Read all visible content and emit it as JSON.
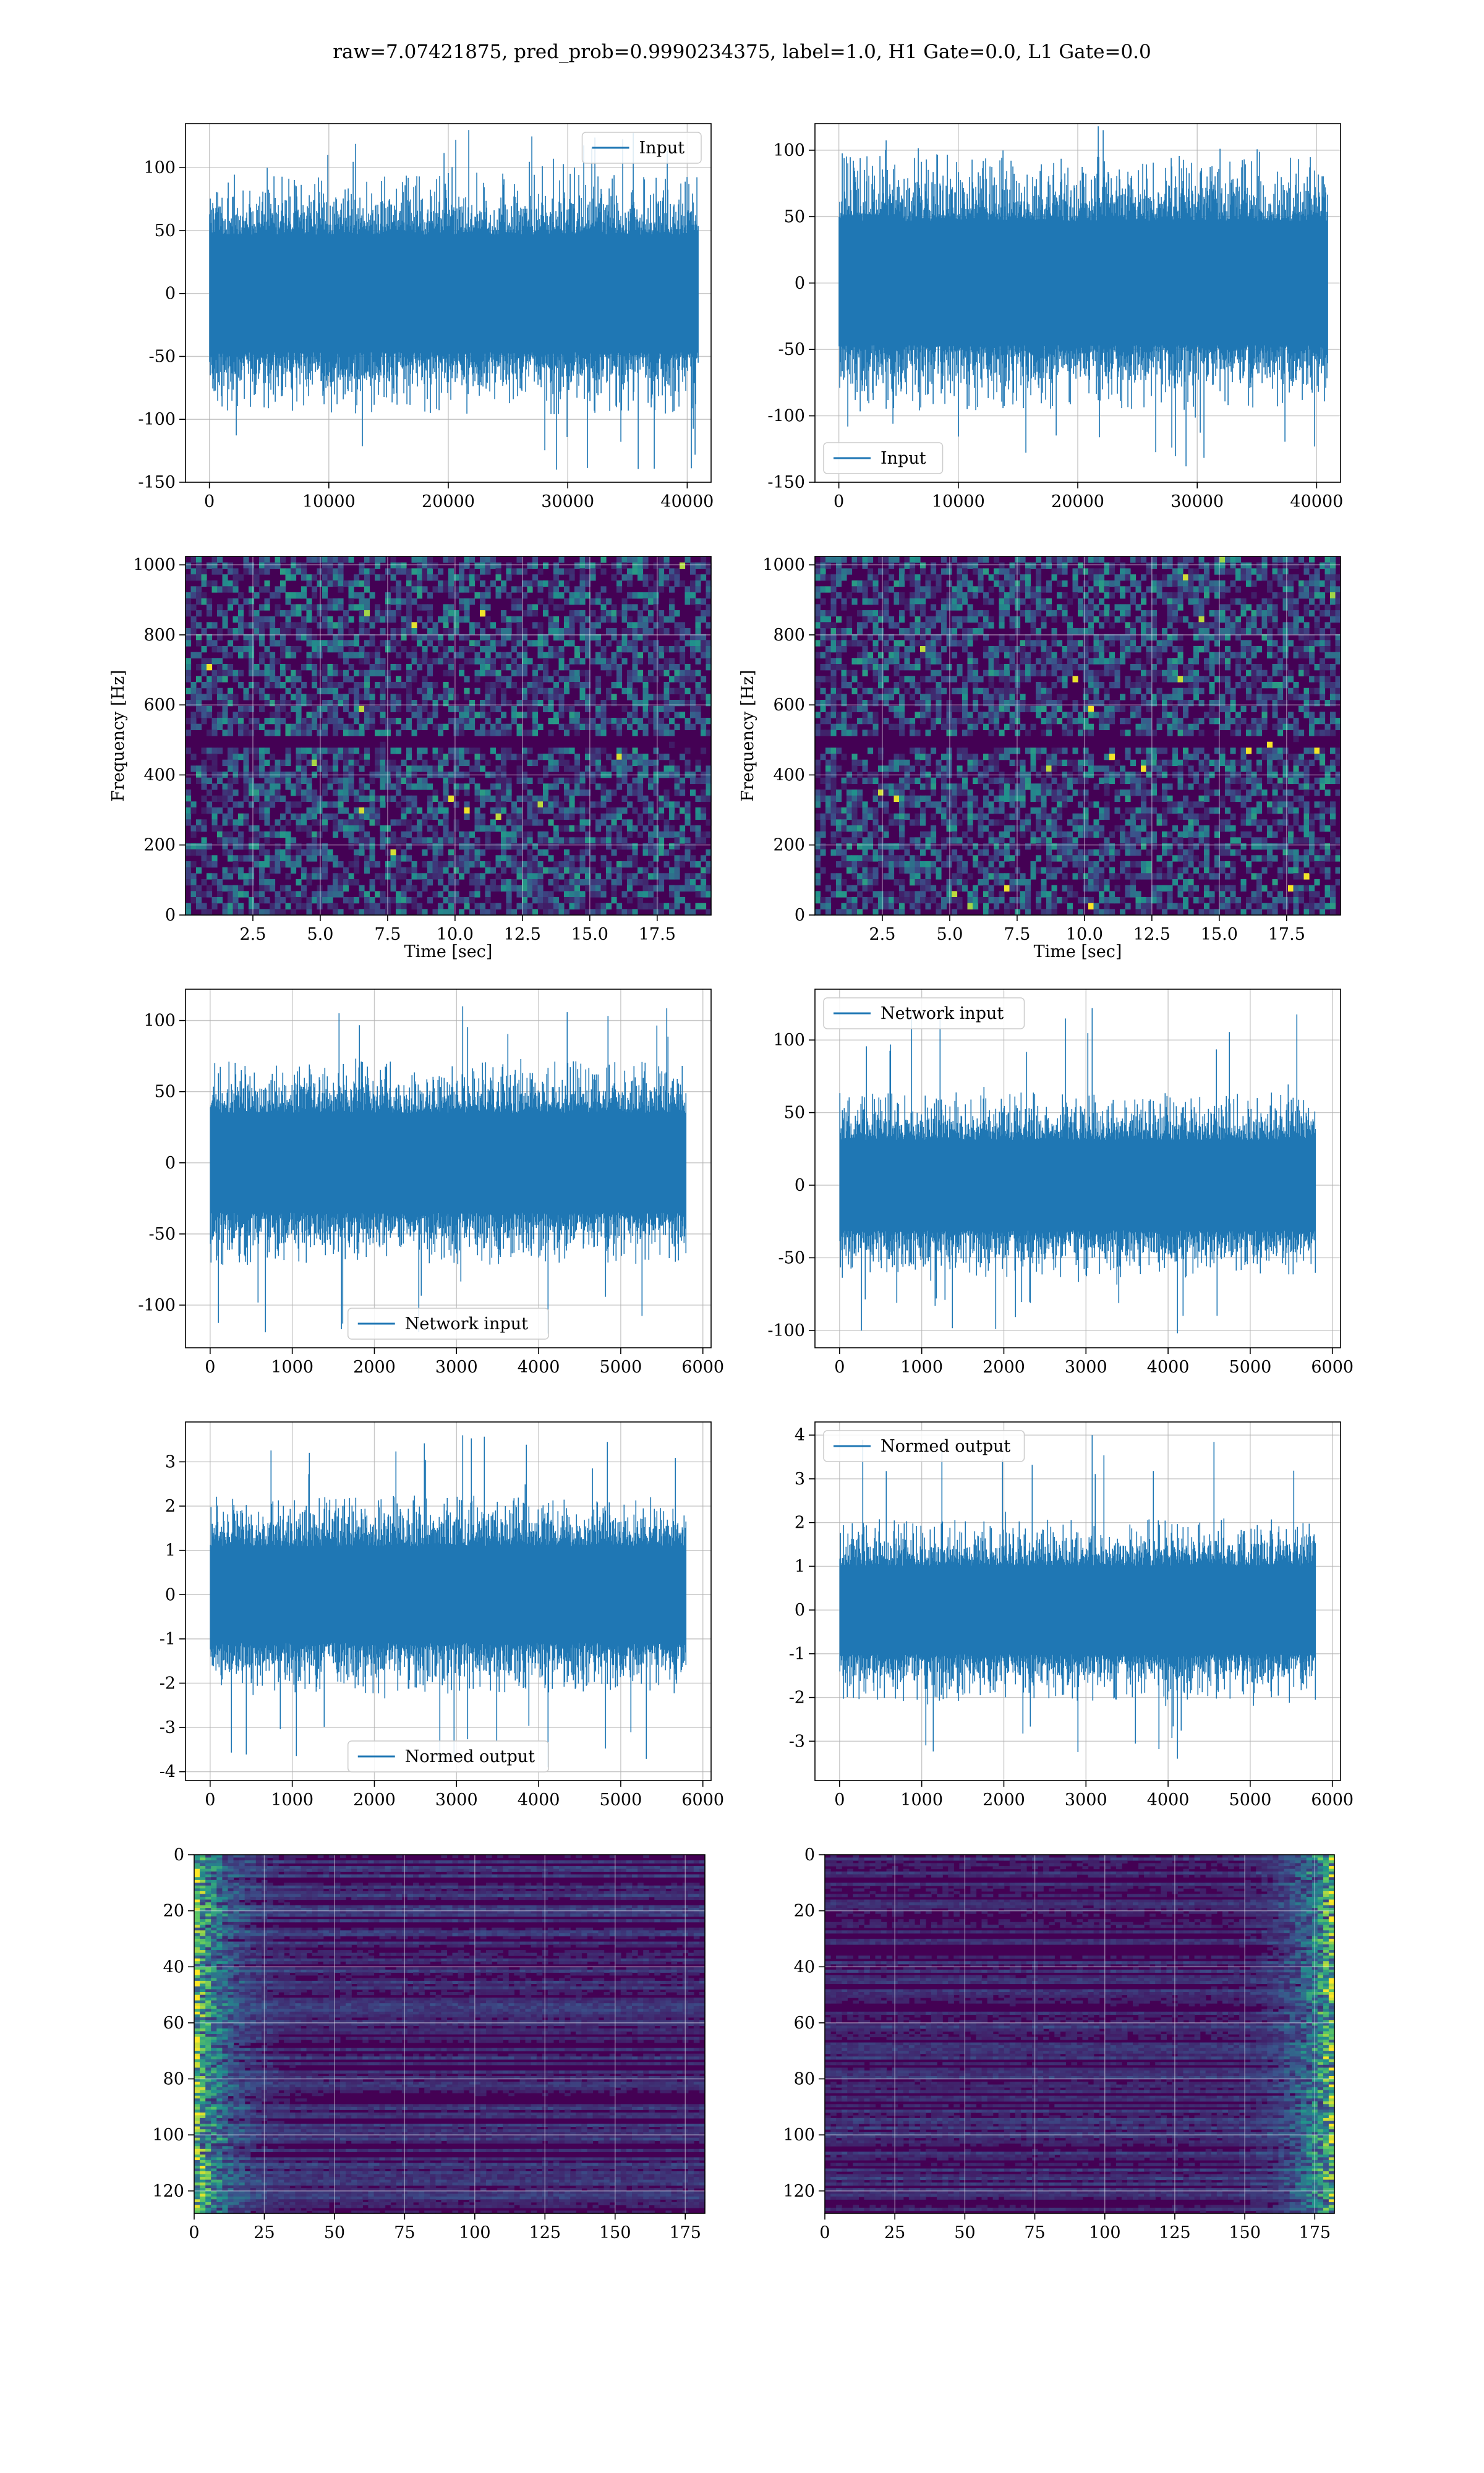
{
  "suptitle": "raw=7.07421875, pred_prob=0.9990234375, label=1.0, H1 Gate=0.0, L1 Gate=0.0",
  "colors": {
    "series": "#1f77b4",
    "grid": "#b0b0b0",
    "heat_low": "#440154",
    "heat_high": "#fde725"
  },
  "chart_data": [
    {
      "id": "h1-input",
      "type": "line",
      "series": [
        {
          "name": "Input"
        }
      ],
      "legend": "top-right",
      "xlim": [
        -2000,
        42000
      ],
      "ylim": [
        -150,
        135
      ],
      "xticks": [
        0,
        10000,
        20000,
        30000,
        40000
      ],
      "yticks": [
        -150,
        -100,
        -50,
        0,
        50,
        100
      ],
      "signal": {
        "n_points": 40960,
        "core_abs": 60,
        "peak_max": 130,
        "peak_min": -140
      },
      "grid": true
    },
    {
      "id": "l1-input",
      "type": "line",
      "series": [
        {
          "name": "Input"
        }
      ],
      "legend": "bottom-left",
      "xlim": [
        -2000,
        42000
      ],
      "ylim": [
        -150,
        120
      ],
      "xticks": [
        0,
        10000,
        20000,
        30000,
        40000
      ],
      "yticks": [
        -150,
        -100,
        -50,
        0,
        50,
        100
      ],
      "signal": {
        "n_points": 40960,
        "core_abs": 60,
        "peak_max": 118,
        "peak_min": -138
      },
      "grid": true
    },
    {
      "id": "h1-spectrogram",
      "type": "heatmap",
      "xlabel": "Time [sec]",
      "ylabel": "Frequency [Hz]",
      "xlim": [
        0,
        19.5
      ],
      "ylim": [
        0,
        1024
      ],
      "xticks": [
        2.5,
        5.0,
        7.5,
        10.0,
        12.5,
        15.0,
        17.5
      ],
      "xtick_labels": [
        "2.5",
        "5.0",
        "7.5",
        "10.0",
        "12.5",
        "15.0",
        "17.5"
      ],
      "yticks": [
        0,
        200,
        400,
        600,
        800,
        1000
      ],
      "dark_band_hz": [
        480,
        520
      ],
      "grid": true
    },
    {
      "id": "l1-spectrogram",
      "type": "heatmap",
      "xlabel": "Time [sec]",
      "ylabel": "Frequency [Hz]",
      "xlim": [
        0,
        19.5
      ],
      "ylim": [
        0,
        1024
      ],
      "xticks": [
        2.5,
        5.0,
        7.5,
        10.0,
        12.5,
        15.0,
        17.5
      ],
      "xtick_labels": [
        "2.5",
        "5.0",
        "7.5",
        "10.0",
        "12.5",
        "15.0",
        "17.5"
      ],
      "yticks": [
        0,
        200,
        400,
        600,
        800,
        1000
      ],
      "dark_band_hz": [
        480,
        520
      ],
      "grid": true
    },
    {
      "id": "h1-network-input",
      "type": "line",
      "series": [
        {
          "name": "Network input"
        }
      ],
      "legend": "bottom-center",
      "xlim": [
        -300,
        6100
      ],
      "ylim": [
        -130,
        122
      ],
      "xticks": [
        0,
        1000,
        2000,
        3000,
        4000,
        5000,
        6000
      ],
      "yticks": [
        -100,
        -50,
        0,
        50,
        100
      ],
      "signal": {
        "n_points": 5800,
        "core_abs": 45,
        "peak_max": 110,
        "peak_min": -120
      },
      "grid": true
    },
    {
      "id": "l1-network-input",
      "type": "line",
      "series": [
        {
          "name": "Network input"
        }
      ],
      "legend": "top-left",
      "xlim": [
        -300,
        6100
      ],
      "ylim": [
        -112,
        135
      ],
      "xticks": [
        0,
        1000,
        2000,
        3000,
        4000,
        5000,
        6000
      ],
      "yticks": [
        -100,
        -50,
        0,
        50,
        100
      ],
      "signal": {
        "n_points": 5800,
        "core_abs": 40,
        "peak_max": 122,
        "peak_min": -102
      },
      "grid": true
    },
    {
      "id": "h1-normed-output",
      "type": "line",
      "series": [
        {
          "name": "Normed output"
        }
      ],
      "legend": "bottom-center",
      "xlim": [
        -300,
        6100
      ],
      "ylim": [
        -4.2,
        3.9
      ],
      "xticks": [
        0,
        1000,
        2000,
        3000,
        4000,
        5000,
        6000
      ],
      "yticks": [
        -4,
        -3,
        -2,
        -1,
        0,
        1,
        2,
        3
      ],
      "signal": {
        "n_points": 5800,
        "core_abs": 1.4,
        "peak_max": 3.6,
        "peak_min": -3.9
      },
      "grid": true
    },
    {
      "id": "l1-normed-output",
      "type": "line",
      "series": [
        {
          "name": "Normed output"
        }
      ],
      "legend": "top-left",
      "xlim": [
        -300,
        6100
      ],
      "ylim": [
        -3.9,
        4.3
      ],
      "xticks": [
        0,
        1000,
        2000,
        3000,
        4000,
        5000,
        6000
      ],
      "yticks": [
        -3,
        -2,
        -1,
        0,
        1,
        2,
        3,
        4
      ],
      "signal": {
        "n_points": 5800,
        "core_abs": 1.3,
        "peak_max": 4.0,
        "peak_min": -3.4
      },
      "grid": true
    },
    {
      "id": "h1-feature-map",
      "type": "heatmap",
      "xlim": [
        0,
        182
      ],
      "ylim": [
        128,
        0
      ],
      "xticks": [
        0,
        25,
        50,
        75,
        100,
        125,
        150,
        175
      ],
      "yticks": [
        0,
        20,
        40,
        60,
        80,
        100,
        120
      ],
      "hot_side": "left",
      "grid": true
    },
    {
      "id": "l1-feature-map",
      "type": "heatmap",
      "xlim": [
        0,
        182
      ],
      "ylim": [
        128,
        0
      ],
      "xticks": [
        0,
        25,
        50,
        75,
        100,
        125,
        150,
        175
      ],
      "yticks": [
        0,
        20,
        40,
        60,
        80,
        100,
        120
      ],
      "hot_side": "right",
      "grid": true
    }
  ]
}
